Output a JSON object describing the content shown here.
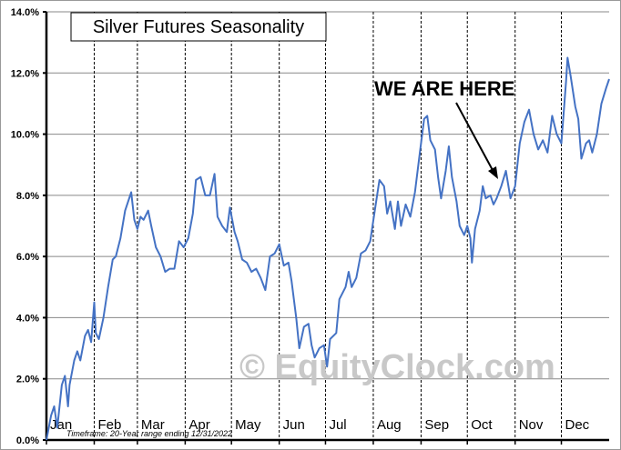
{
  "chart_data": {
    "type": "line",
    "title": "Silver Futures Seasonality",
    "xlabel": "",
    "ylabel": "",
    "ylim": [
      0,
      14
    ],
    "xlim": [
      0,
      365
    ],
    "grid": true,
    "yticks": [
      "0.0%",
      "2.0%",
      "4.0%",
      "6.0%",
      "8.0%",
      "10.0%",
      "12.0%",
      "14.0%"
    ],
    "months": [
      "Jan",
      "Feb",
      "Mar",
      "Apr",
      "May",
      "Jun",
      "Jul",
      "Aug",
      "Sep",
      "Oct",
      "Nov",
      "Dec"
    ],
    "annotation": "WE ARE HERE",
    "footnote": "Timeframe: 20-Year range ending 12/31/2022",
    "watermark": "© EquityClock.com",
    "line_color": "#4472C4",
    "x": [
      0,
      3,
      5,
      7,
      10,
      12,
      14,
      15,
      18,
      20,
      22,
      25,
      27,
      29,
      31,
      32,
      34,
      37,
      40,
      43,
      45,
      48,
      51,
      55,
      57,
      59,
      61,
      63,
      66,
      68,
      71,
      74,
      77,
      80,
      83,
      86,
      89,
      92,
      95,
      97,
      100,
      103,
      106,
      109,
      111,
      114,
      117,
      119,
      122,
      124,
      127,
      130,
      133,
      136,
      139,
      142,
      145,
      148,
      151,
      154,
      157,
      159,
      162,
      164,
      167,
      170,
      172,
      174,
      177,
      180,
      182,
      184,
      188,
      190,
      194,
      196,
      198,
      201,
      204,
      207,
      210,
      213,
      216,
      219,
      221,
      223,
      226,
      228,
      230,
      233,
      236,
      239,
      242,
      245,
      247,
      249,
      252,
      254,
      256,
      259,
      261,
      263,
      266,
      268,
      271,
      273,
      275,
      276,
      278,
      281,
      283,
      285,
      288,
      290,
      292,
      295,
      298,
      301,
      304,
      307,
      310,
      313,
      316,
      319,
      322,
      325,
      328,
      331,
      334,
      337,
      338,
      340,
      343,
      345,
      347,
      350,
      352,
      354,
      357,
      360,
      363,
      365
    ],
    "y": [
      0.0,
      0.8,
      1.1,
      0.4,
      1.8,
      2.1,
      1.1,
      1.8,
      2.6,
      2.9,
      2.6,
      3.4,
      3.6,
      3.2,
      4.5,
      3.5,
      3.3,
      4.0,
      5.0,
      5.9,
      6.0,
      6.6,
      7.5,
      8.1,
      7.2,
      6.9,
      7.3,
      7.2,
      7.5,
      7.0,
      6.3,
      6.0,
      5.5,
      5.6,
      5.6,
      6.5,
      6.3,
      6.6,
      7.4,
      8.5,
      8.6,
      8.0,
      8.0,
      8.7,
      7.3,
      7.0,
      6.8,
      7.6,
      6.8,
      6.5,
      5.9,
      5.8,
      5.5,
      5.6,
      5.3,
      4.9,
      6.0,
      6.1,
      6.4,
      5.7,
      5.8,
      5.2,
      4.0,
      3.0,
      3.7,
      3.8,
      3.1,
      2.7,
      3.0,
      3.1,
      2.4,
      3.3,
      3.5,
      4.6,
      5.0,
      5.5,
      5.0,
      5.3,
      6.1,
      6.2,
      6.5,
      7.5,
      8.5,
      8.3,
      7.4,
      7.8,
      6.9,
      7.8,
      7.0,
      7.7,
      7.3,
      8.1,
      9.3,
      10.5,
      10.6,
      9.8,
      9.5,
      8.6,
      7.9,
      8.8,
      9.6,
      8.6,
      7.8,
      7.0,
      6.7,
      7.0,
      6.6,
      5.8,
      6.9,
      7.5,
      8.3,
      7.9,
      8.0,
      7.7,
      7.9,
      8.3,
      8.8,
      7.9,
      8.3,
      9.7,
      10.4,
      10.8,
      10.0,
      9.5,
      9.8,
      9.4,
      10.6,
      10.0,
      9.7,
      11.7,
      12.5,
      11.9,
      10.9,
      10.5,
      9.2,
      9.7,
      9.8,
      9.4,
      10.0,
      11.0,
      11.5,
      11.8
    ]
  }
}
